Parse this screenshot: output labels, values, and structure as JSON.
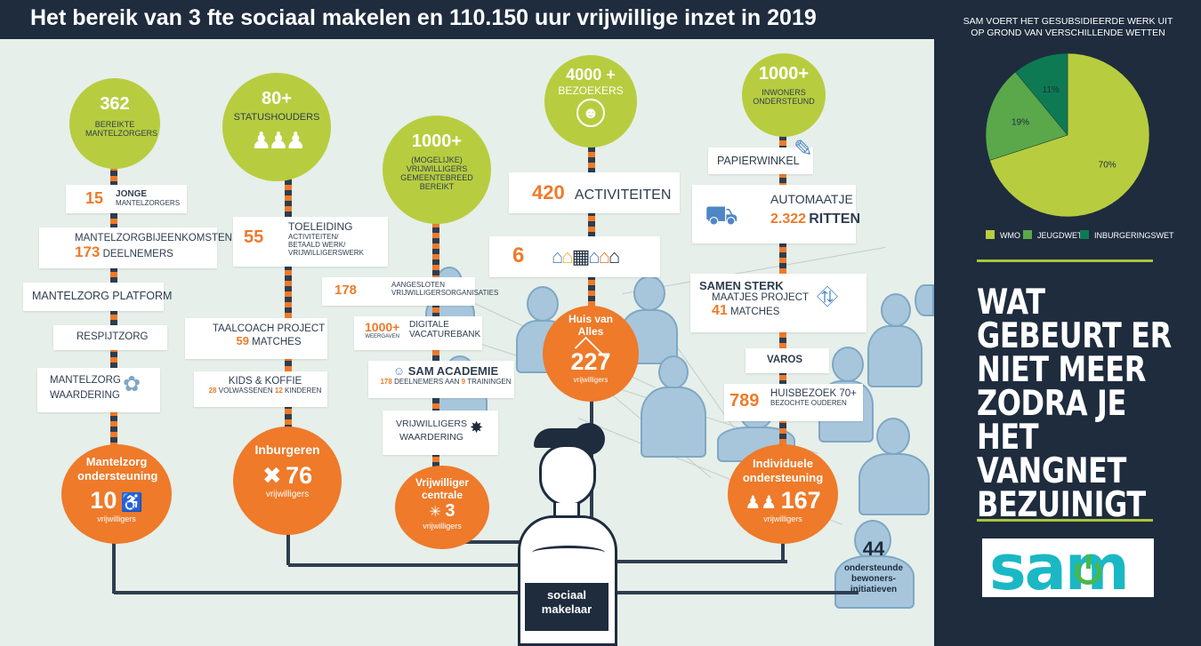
{
  "title": "Het bereik van 3 fte sociaal makelen en 110.150 uur vrijwillige inzet in 2019",
  "colors": {
    "navy": "#1e2c3e",
    "green": "#b7cd3f",
    "orange": "#ee7a2a",
    "lightbg": "#e6efe9"
  },
  "columns": {
    "mantelzorg": {
      "top_num": "362",
      "top_label": "BEREIKTE MANTELZORGERS",
      "jonge_num": "15",
      "jonge_label": "JONGE",
      "jonge_label2": "MANTELZORGERS",
      "bijeenkomsten_label": "MANTELZORGBIJEENKOMSTEN",
      "bijeenkomsten_num": "173",
      "bijeenkomsten_deelnemers": "DEELNEMERS",
      "platform": "MANTELZORG PLATFORM",
      "respijtzorg": "RESPIJTZORG",
      "waardering": "MANTELZORG WAARDERING",
      "bottom_name": "Mantelzorg ondersteuning",
      "bottom_num": "10",
      "bottom_unit": "vrijwilligers"
    },
    "statushouders": {
      "top_num": "80+",
      "top_label": "STATUSHOUDERS",
      "toeleiding_num": "55",
      "toeleiding_title": "TOELEIDING",
      "toeleiding_line1": "ACTIVITEITEN/",
      "toeleiding_line2": "BETAALD WERK/",
      "toeleiding_line3": "VRIJWILLIGERSWERK",
      "taalcoach": "TAALCOACH PROJECT",
      "taalcoach_num": "59",
      "taalcoach_matches": "MATCHES",
      "kids": "KIDS & KOFFIE",
      "kids_num1": "28",
      "kids_txt1": "VOLWASSENEN",
      "kids_num2": "12",
      "kids_txt2": "KINDEREN",
      "bottom_name": "Inburgeren",
      "bottom_num": "76",
      "bottom_unit": "vrijwilligers"
    },
    "vrijwilligers": {
      "top_num": "1000+",
      "top_label": "(MOGELIJKE) VRIJWILLIGERS GEMEENTEBREED BEREIKT",
      "org_num": "178",
      "org_label1": "AANGESLOTEN",
      "org_label2": "VRIJWILLIGERSORGANISATIES",
      "vac_num": "1000+",
      "vac_sub": "WEERGAVEN",
      "vac_label1": "DIGITALE",
      "vac_label2": "VACATUREBANK",
      "academie": "SAM ACADEMIE",
      "academie_num1": "178",
      "academie_txt1": "DEELNEMERS AAN",
      "academie_num2": "9",
      "academie_txt2": "TRAININGEN",
      "waardering": "VRIJWILLIGERS WAARDERING",
      "bottom_name": "Vrijwilliger centrale",
      "bottom_num": "3",
      "bottom_unit": "vrijwilligers"
    },
    "huis": {
      "top_num": "4000 +",
      "top_label": "BEZOEKERS",
      "act_num": "420",
      "act_label": "ACTIVITEITEN",
      "loc_num": "6",
      "bottom_name": "Huis van Alles",
      "bottom_num": "227",
      "bottom_unit": "vrijwilligers"
    },
    "individueel": {
      "top_num": "1000+",
      "top_label": "INWONERS ONDERSTEUND",
      "papier": "PAPIERWINKEL",
      "automaatje": "AUTOMAATJE",
      "ritten_num": "2.322",
      "ritten_label": "RITTEN",
      "samen": "SAMEN STERK",
      "maatjes": "MAATJES PROJECT",
      "maatjes_num": "41",
      "maatjes_label": "MATCHES",
      "varos": "VAROS",
      "huisbezoek_num": "789",
      "huisbezoek_label": "HUISBEZOEK 70+",
      "huisbezoek_sub": "BEZOCHTE OUDEREN",
      "bottom_name": "Individuele ondersteuning",
      "bottom_num": "167",
      "bottom_unit": "vrijwilligers"
    }
  },
  "bewoners": {
    "num": "44",
    "label": "ondersteunde bewoners- initiatieven"
  },
  "makelaar": {
    "label": "sociaal makelaar"
  },
  "right_panel": {
    "pie_title": "SAM VOERT HET GESUBSIDIEERDE WERK UIT OP GROND VAN VERSCHILLENDE  WETTEN",
    "question": "WAT GEBEURT ER NIET MEER ZODRA JE HET VANGNET BEZUINIGT",
    "logo": "sam"
  },
  "chart_data": {
    "type": "pie",
    "title": "SAM VOERT HET GESUBSIDIEERDE WERK UIT OP GROND VAN VERSCHILLENDE  WETTEN",
    "categories": [
      "WMO",
      "JEUGDWET",
      "INBURGERINGSWET"
    ],
    "values": [
      70,
      19,
      11
    ],
    "labels": [
      "70%",
      "19%",
      "11%"
    ],
    "colors": [
      "#b7cd3f",
      "#5aa84a",
      "#0d7a53"
    ],
    "legend": "bottom"
  }
}
